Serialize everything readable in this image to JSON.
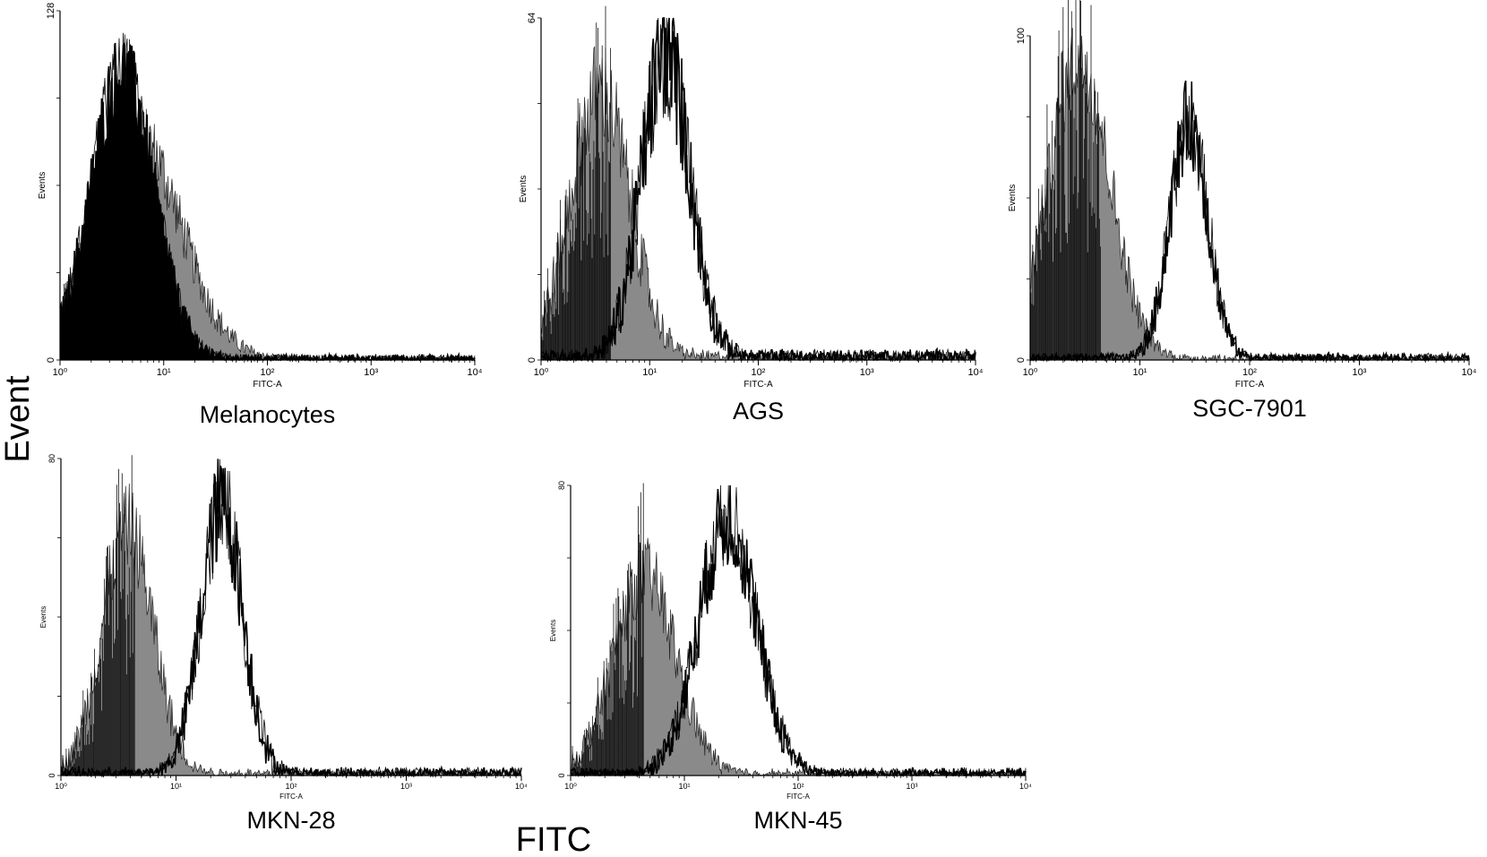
{
  "figure": {
    "ylabel": "Event",
    "xlabel": "FITC"
  },
  "colors": {
    "control_fill": "#8a8a8a",
    "sample_outline": "#000000",
    "background": "#ffffff"
  },
  "chart_data": [
    {
      "type": "area",
      "title": "Melanocytes",
      "xlabel": "FITC-A",
      "ylabel": "Events",
      "x_scale": "log",
      "xlim": [
        1,
        10000
      ],
      "ylim": [
        0,
        128
      ],
      "x_ticks": [
        "10⁰",
        "10¹",
        "10²",
        "10³",
        "10⁴"
      ],
      "y_ticks": [
        "0",
        "128"
      ],
      "series": [
        {
          "role": "control",
          "peak_x": 5.5,
          "peak_y": 82,
          "width_decades": 0.42
        },
        {
          "role": "sample",
          "peak_x": 4.0,
          "peak_y": 104,
          "width_decades": 0.3
        }
      ]
    },
    {
      "type": "area",
      "title": "AGS",
      "xlabel": "FITC-A",
      "ylabel": "Events",
      "x_scale": "log",
      "xlim": [
        1,
        10000
      ],
      "ylim": [
        0,
        64
      ],
      "x_ticks": [
        "10⁰",
        "10¹",
        "10²",
        "10³",
        "10⁴"
      ],
      "y_ticks": [
        "0",
        "64"
      ],
      "series": [
        {
          "role": "control",
          "peak_x": 3.5,
          "peak_y": 50,
          "width_decades": 0.27
        },
        {
          "role": "sample",
          "peak_x": 14,
          "peak_y": 57,
          "width_decades": 0.22
        }
      ]
    },
    {
      "type": "area",
      "title": "SGC-7901",
      "xlabel": "FITC-A",
      "ylabel": "Events",
      "x_scale": "log",
      "xlim": [
        1,
        10000
      ],
      "ylim": [
        0,
        100
      ],
      "x_ticks": [
        "10⁰",
        "10¹",
        "10²",
        "10³",
        "10⁴"
      ],
      "y_ticks": [
        "0",
        "100"
      ],
      "series": [
        {
          "role": "control",
          "peak_x": 2.8,
          "peak_y": 92,
          "width_decades": 0.28
        },
        {
          "role": "sample",
          "peak_x": 28,
          "peak_y": 73,
          "width_decades": 0.17
        }
      ]
    },
    {
      "type": "area",
      "title": "MKN-28",
      "xlabel": "FITC-A",
      "ylabel": "Events",
      "x_scale": "log",
      "xlim": [
        1,
        10000
      ],
      "ylim": [
        0,
        80
      ],
      "x_ticks": [
        "10⁰",
        "10¹",
        "10²",
        "10³",
        "10⁴"
      ],
      "y_ticks": [
        "0",
        "80"
      ],
      "series": [
        {
          "role": "control",
          "peak_x": 3.8,
          "peak_y": 62,
          "width_decades": 0.22
        },
        {
          "role": "sample",
          "peak_x": 25,
          "peak_y": 68,
          "width_decades": 0.18
        }
      ]
    },
    {
      "type": "area",
      "title": "MKN-45",
      "xlabel": "FITC-A",
      "ylabel": "Events",
      "x_scale": "log",
      "xlim": [
        1,
        10000
      ],
      "ylim": [
        0,
        80
      ],
      "x_ticks": [
        "10⁰",
        "10¹",
        "10²",
        "10³",
        "10⁴"
      ],
      "y_ticks": [
        "0",
        "80"
      ],
      "series": [
        {
          "role": "control",
          "peak_x": 4.5,
          "peak_y": 55,
          "width_decades": 0.27
        },
        {
          "role": "sample",
          "peak_x": 24,
          "peak_y": 70,
          "width_decades": 0.25
        }
      ]
    }
  ]
}
